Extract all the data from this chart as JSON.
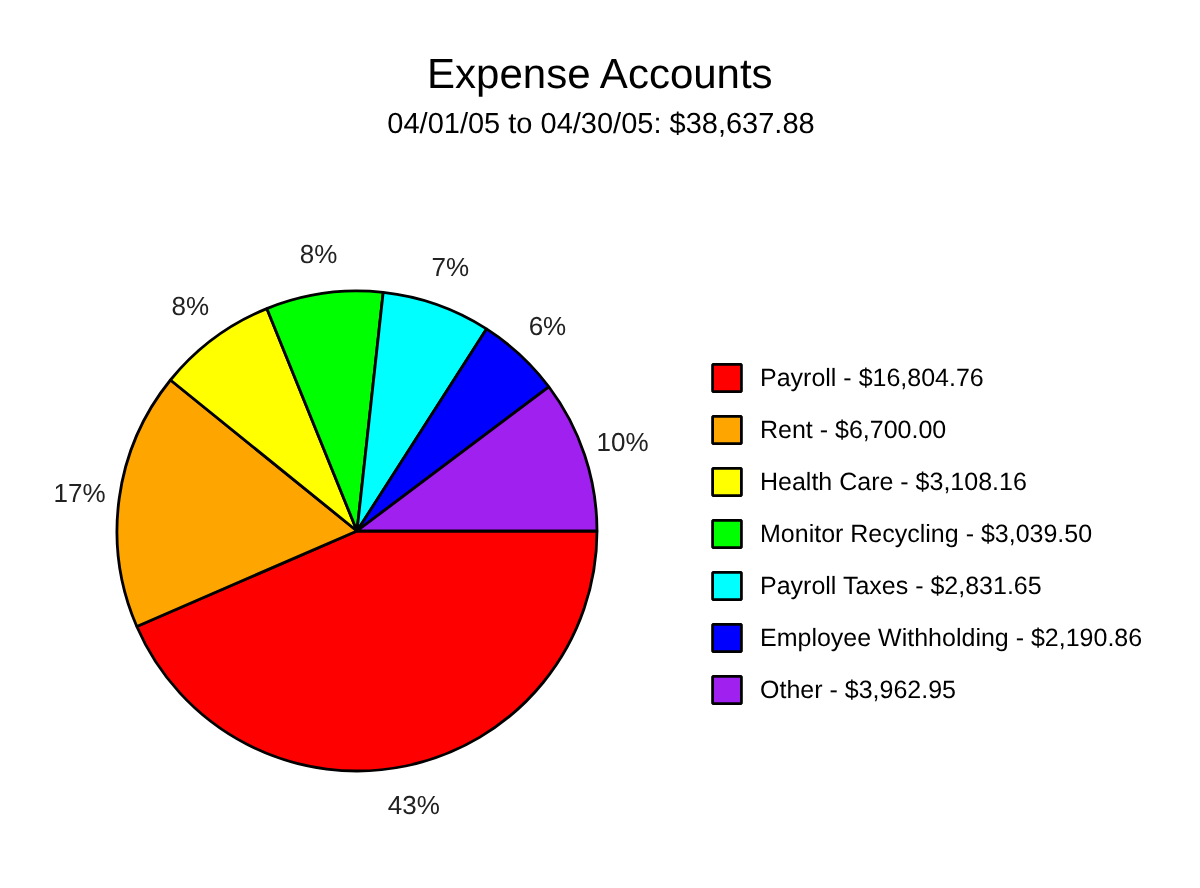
{
  "chart_data": {
    "type": "pie",
    "title": "Expense Accounts",
    "subtitle": "04/01/05 to 04/30/05: $38,637.88",
    "categories": [
      "Payroll - $16,804.76",
      "Rent - $6,700.00",
      "Health Care - $3,108.16",
      "Monitor Recycling - $3,039.50",
      "Payroll Taxes - $2,831.65",
      "Employee Withholding - $2,190.86",
      "Other - $3,962.95"
    ],
    "values": [
      43.49,
      17.34,
      8.04,
      7.87,
      7.33,
      5.67,
      10.26
    ],
    "colors": [
      "#ff0000",
      "#ffa500",
      "#ffff00",
      "#00ff00",
      "#00ffff",
      "#0000ff",
      "#a020f0"
    ],
    "value_labels": [
      "43%",
      "17%",
      "8%",
      "8%",
      "7%",
      "6%",
      "10%"
    ],
    "legend": "right"
  }
}
